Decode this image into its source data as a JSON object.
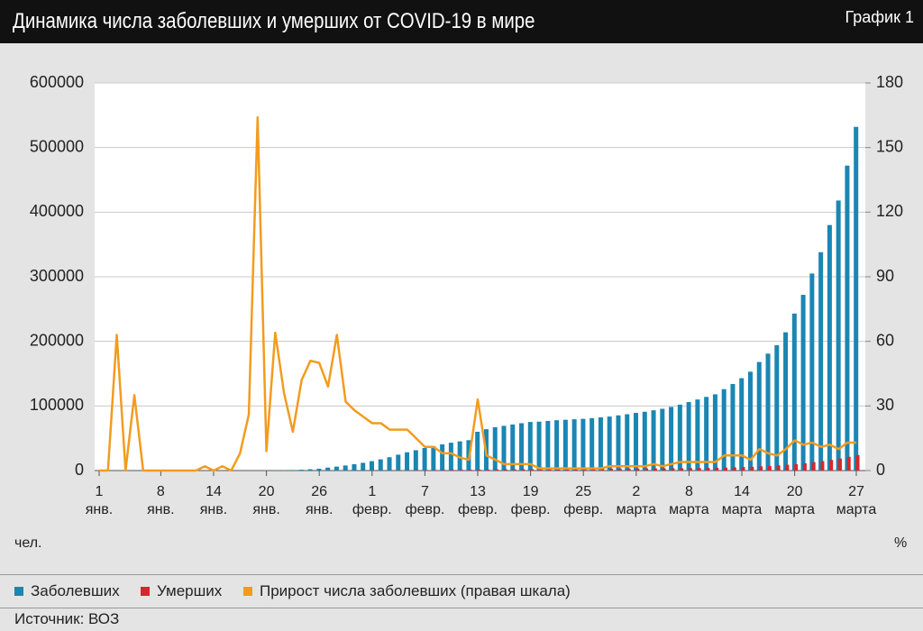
{
  "chart_data": {
    "type": "bar_line",
    "title": "Динамика числа заболевших и умерших от COVID-19 в мире",
    "label": "График 1",
    "y_unit": "чел.",
    "y2_unit": "%",
    "source": "Источник: ВОЗ",
    "categories": [
      "1\nянв.",
      null,
      null,
      null,
      null,
      null,
      null,
      "8\nянв.",
      null,
      null,
      null,
      null,
      null,
      "14\nянв.",
      null,
      null,
      null,
      null,
      null,
      "20\nянв.",
      null,
      null,
      null,
      null,
      null,
      "26\nянв.",
      null,
      null,
      null,
      null,
      null,
      "1\nфевр.",
      null,
      null,
      null,
      null,
      null,
      "7\nфевр.",
      null,
      null,
      null,
      null,
      null,
      "13\nфевр.",
      null,
      null,
      null,
      null,
      null,
      "19\nфевр.",
      null,
      null,
      null,
      null,
      null,
      "25\nфевр.",
      null,
      null,
      null,
      null,
      null,
      "2\nмарта",
      null,
      null,
      null,
      null,
      null,
      "8\nмарта",
      null,
      null,
      null,
      null,
      null,
      "14\nмарта",
      null,
      null,
      null,
      null,
      null,
      "20\nмарта",
      null,
      null,
      null,
      null,
      null,
      null,
      "27\nмарта"
    ],
    "series": [
      {
        "name": "Заболевших",
        "color": "#1a86b3",
        "kind": "bar",
        "values": [
          27,
          27,
          27,
          27,
          44,
          44,
          59,
          59,
          59,
          59,
          59,
          41,
          41,
          41,
          41,
          41,
          41,
          45,
          62,
          282,
          314,
          581,
          846,
          1320,
          2014,
          2798,
          4593,
          6065,
          7818,
          9826,
          11953,
          14557,
          17391,
          20630,
          24554,
          28276,
          31481,
          34886,
          37558,
          40554,
          43103,
          45171,
          46997,
          60000,
          64000,
          67100,
          69200,
          71300,
          73300,
          75200,
          75700,
          76800,
          77900,
          78600,
          79400,
          80100,
          81100,
          82300,
          83600,
          85400,
          87200,
          89300,
          91000,
          93300,
          95600,
          98500,
          102000,
          106000,
          110000,
          114000,
          118000,
          126000,
          134000,
          143000,
          153000,
          168000,
          181000,
          194000,
          214000,
          243000,
          272000,
          305000,
          338000,
          380000,
          418000,
          472000,
          532000
        ]
      },
      {
        "name": "Умерших",
        "color": "#d7262c",
        "kind": "bar",
        "values": [
          0,
          0,
          0,
          0,
          0,
          0,
          0,
          0,
          0,
          0,
          0,
          0,
          0,
          0,
          0,
          0,
          0,
          0,
          0,
          6,
          6,
          17,
          25,
          41,
          56,
          80,
          106,
          132,
          170,
          213,
          259,
          304,
          362,
          426,
          492,
          565,
          638,
          724,
          813,
          910,
          1018,
          1115,
          1261,
          1383,
          1526,
          1669,
          1775,
          1873,
          2009,
          2126,
          2247,
          2360,
          2460,
          2618,
          2699,
          2763,
          2800,
          2858,
          2924,
          2977,
          3050,
          3117,
          3202,
          3285,
          3387,
          3494,
          3584,
          3700,
          3827,
          4015,
          4296,
          4613,
          4983,
          5430,
          5833,
          6515,
          7160,
          7987,
          8951,
          9827,
          11184,
          13024,
          14622,
          16513,
          18625,
          21296,
          23970
        ]
      },
      {
        "name": "Прирост числа заболевших (правая шкала)",
        "color": "#f39b1f",
        "kind": "line",
        "axis": "y2",
        "values": [
          0,
          0,
          63,
          0,
          35,
          0,
          0,
          0,
          0,
          0,
          0,
          0,
          2,
          0,
          2,
          0,
          8,
          26,
          164,
          9,
          64,
          36,
          18,
          42,
          51,
          50,
          39,
          63,
          32,
          28,
          25,
          22,
          22,
          19,
          19,
          19,
          15,
          11,
          11,
          8,
          8,
          6,
          5,
          33,
          7,
          5,
          3,
          3,
          3,
          3,
          1,
          1,
          1,
          1,
          1,
          1,
          1,
          1,
          2,
          2,
          2,
          2,
          2,
          3,
          2,
          3,
          4,
          4,
          4,
          4,
          4,
          7,
          7,
          7,
          5,
          10,
          8,
          7,
          10,
          14,
          12,
          13,
          11,
          12,
          10,
          13,
          13
        ]
      }
    ],
    "ylim": [
      0,
      600000
    ],
    "yticks": [
      0,
      100000,
      200000,
      300000,
      400000,
      500000,
      600000
    ],
    "y2lim": [
      0,
      180
    ],
    "y2ticks": [
      0,
      30,
      60,
      90,
      120,
      150,
      180
    ],
    "grid": true
  }
}
